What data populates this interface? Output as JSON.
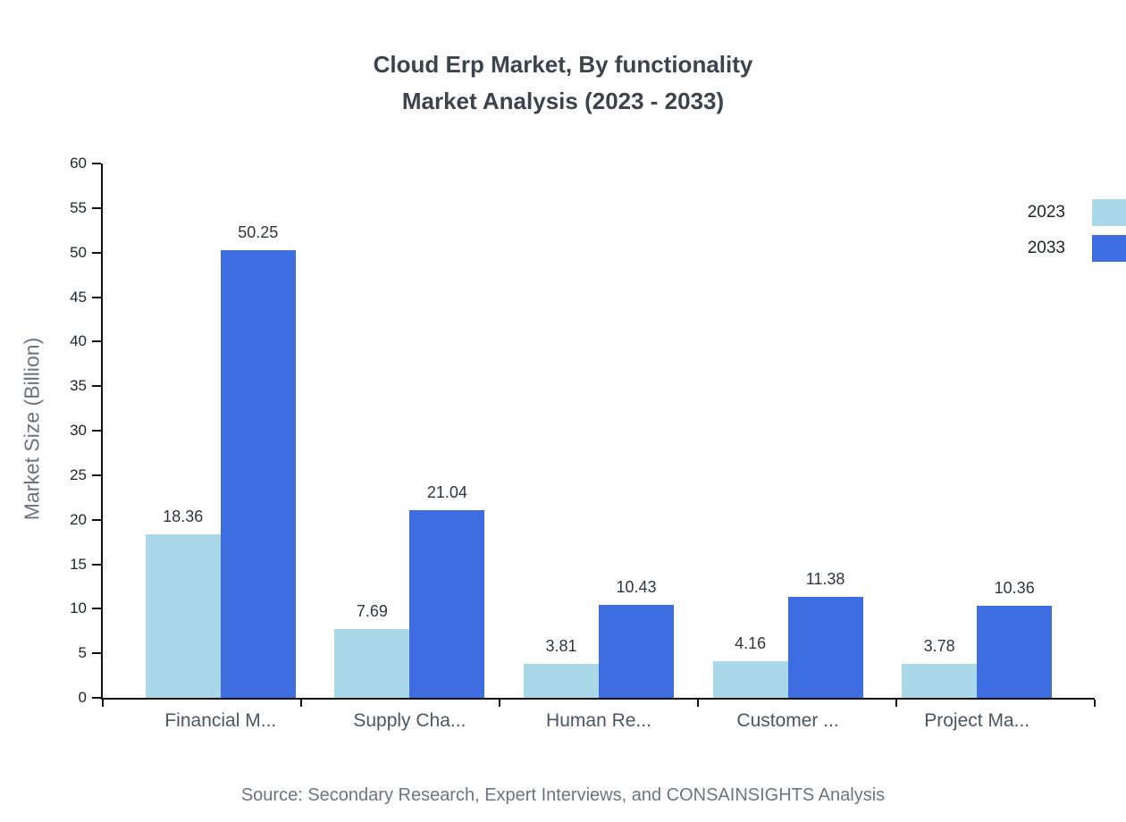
{
  "chart_data": {
    "type": "bar",
    "title_line1": "Cloud Erp Market, By functionality",
    "title_line2": "Market Analysis (2023 - 2033)",
    "ylabel": "Market Size (Billion)",
    "xlabel": "",
    "ylim": [
      0,
      60
    ],
    "ytick_step": 5,
    "grid": false,
    "legend_position": "top-right",
    "categories": [
      "Financial M...",
      "Supply Cha...",
      "Human Re...",
      "Customer ...",
      "Project Ma..."
    ],
    "series": [
      {
        "name": "2023",
        "color": "#a9d8e8",
        "values": [
          18.36,
          7.69,
          3.81,
          4.16,
          3.78
        ]
      },
      {
        "name": "2033",
        "color": "#3d6de1",
        "values": [
          50.25,
          21.04,
          10.43,
          11.38,
          10.36
        ]
      }
    ],
    "source": "Source: Secondary Research, Expert Interviews, and CONSAINSIGHTS Analysis"
  }
}
